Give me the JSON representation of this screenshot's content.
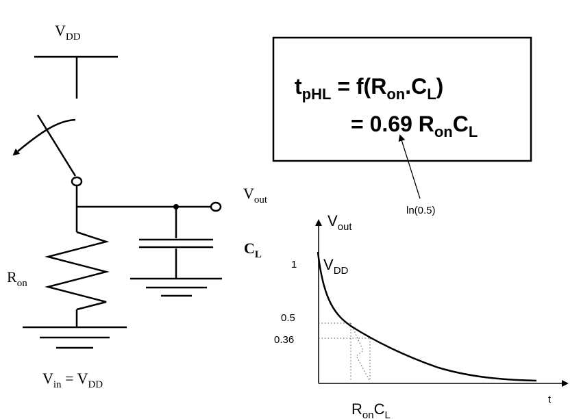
{
  "circuit": {
    "supply": {
      "main": "V",
      "sub": "DD"
    },
    "output": {
      "main": "V",
      "sub": "out"
    },
    "capacitor": {
      "main": "C",
      "sub": "L"
    },
    "resistor": {
      "main": "R",
      "sub": "on"
    },
    "input": {
      "lhs_main": "V",
      "lhs_sub": "in",
      "eq": " = ",
      "rhs_main": "V",
      "rhs_sub": "DD"
    }
  },
  "formula": {
    "line1": {
      "t": "t",
      "t_sub": "pHL",
      "eq": " = f(",
      "r": "R",
      "r_sub": "on",
      "dot": ".",
      "c": "C",
      "c_sub": "L",
      "close": ")"
    },
    "line2": {
      "eq": "= 0.69 ",
      "r": "R",
      "r_sub": "on",
      "c": "C",
      "c_sub": "L"
    },
    "annotation": "ln(0.5)"
  },
  "chart_data": {
    "type": "line",
    "ylabel": {
      "main": "V",
      "sub": "out"
    },
    "xlabel": "t",
    "curve_label": {
      "main": "V",
      "sub": "DD"
    },
    "y_ticks": [
      "1",
      "0.5",
      "0.36"
    ],
    "x_marker": {
      "main": "R",
      "sub": "on",
      "tail": "C",
      "tail_sub": "L"
    },
    "curve": "exponential decay from 1 toward 0",
    "guides": [
      "0.5",
      "0.36"
    ]
  }
}
